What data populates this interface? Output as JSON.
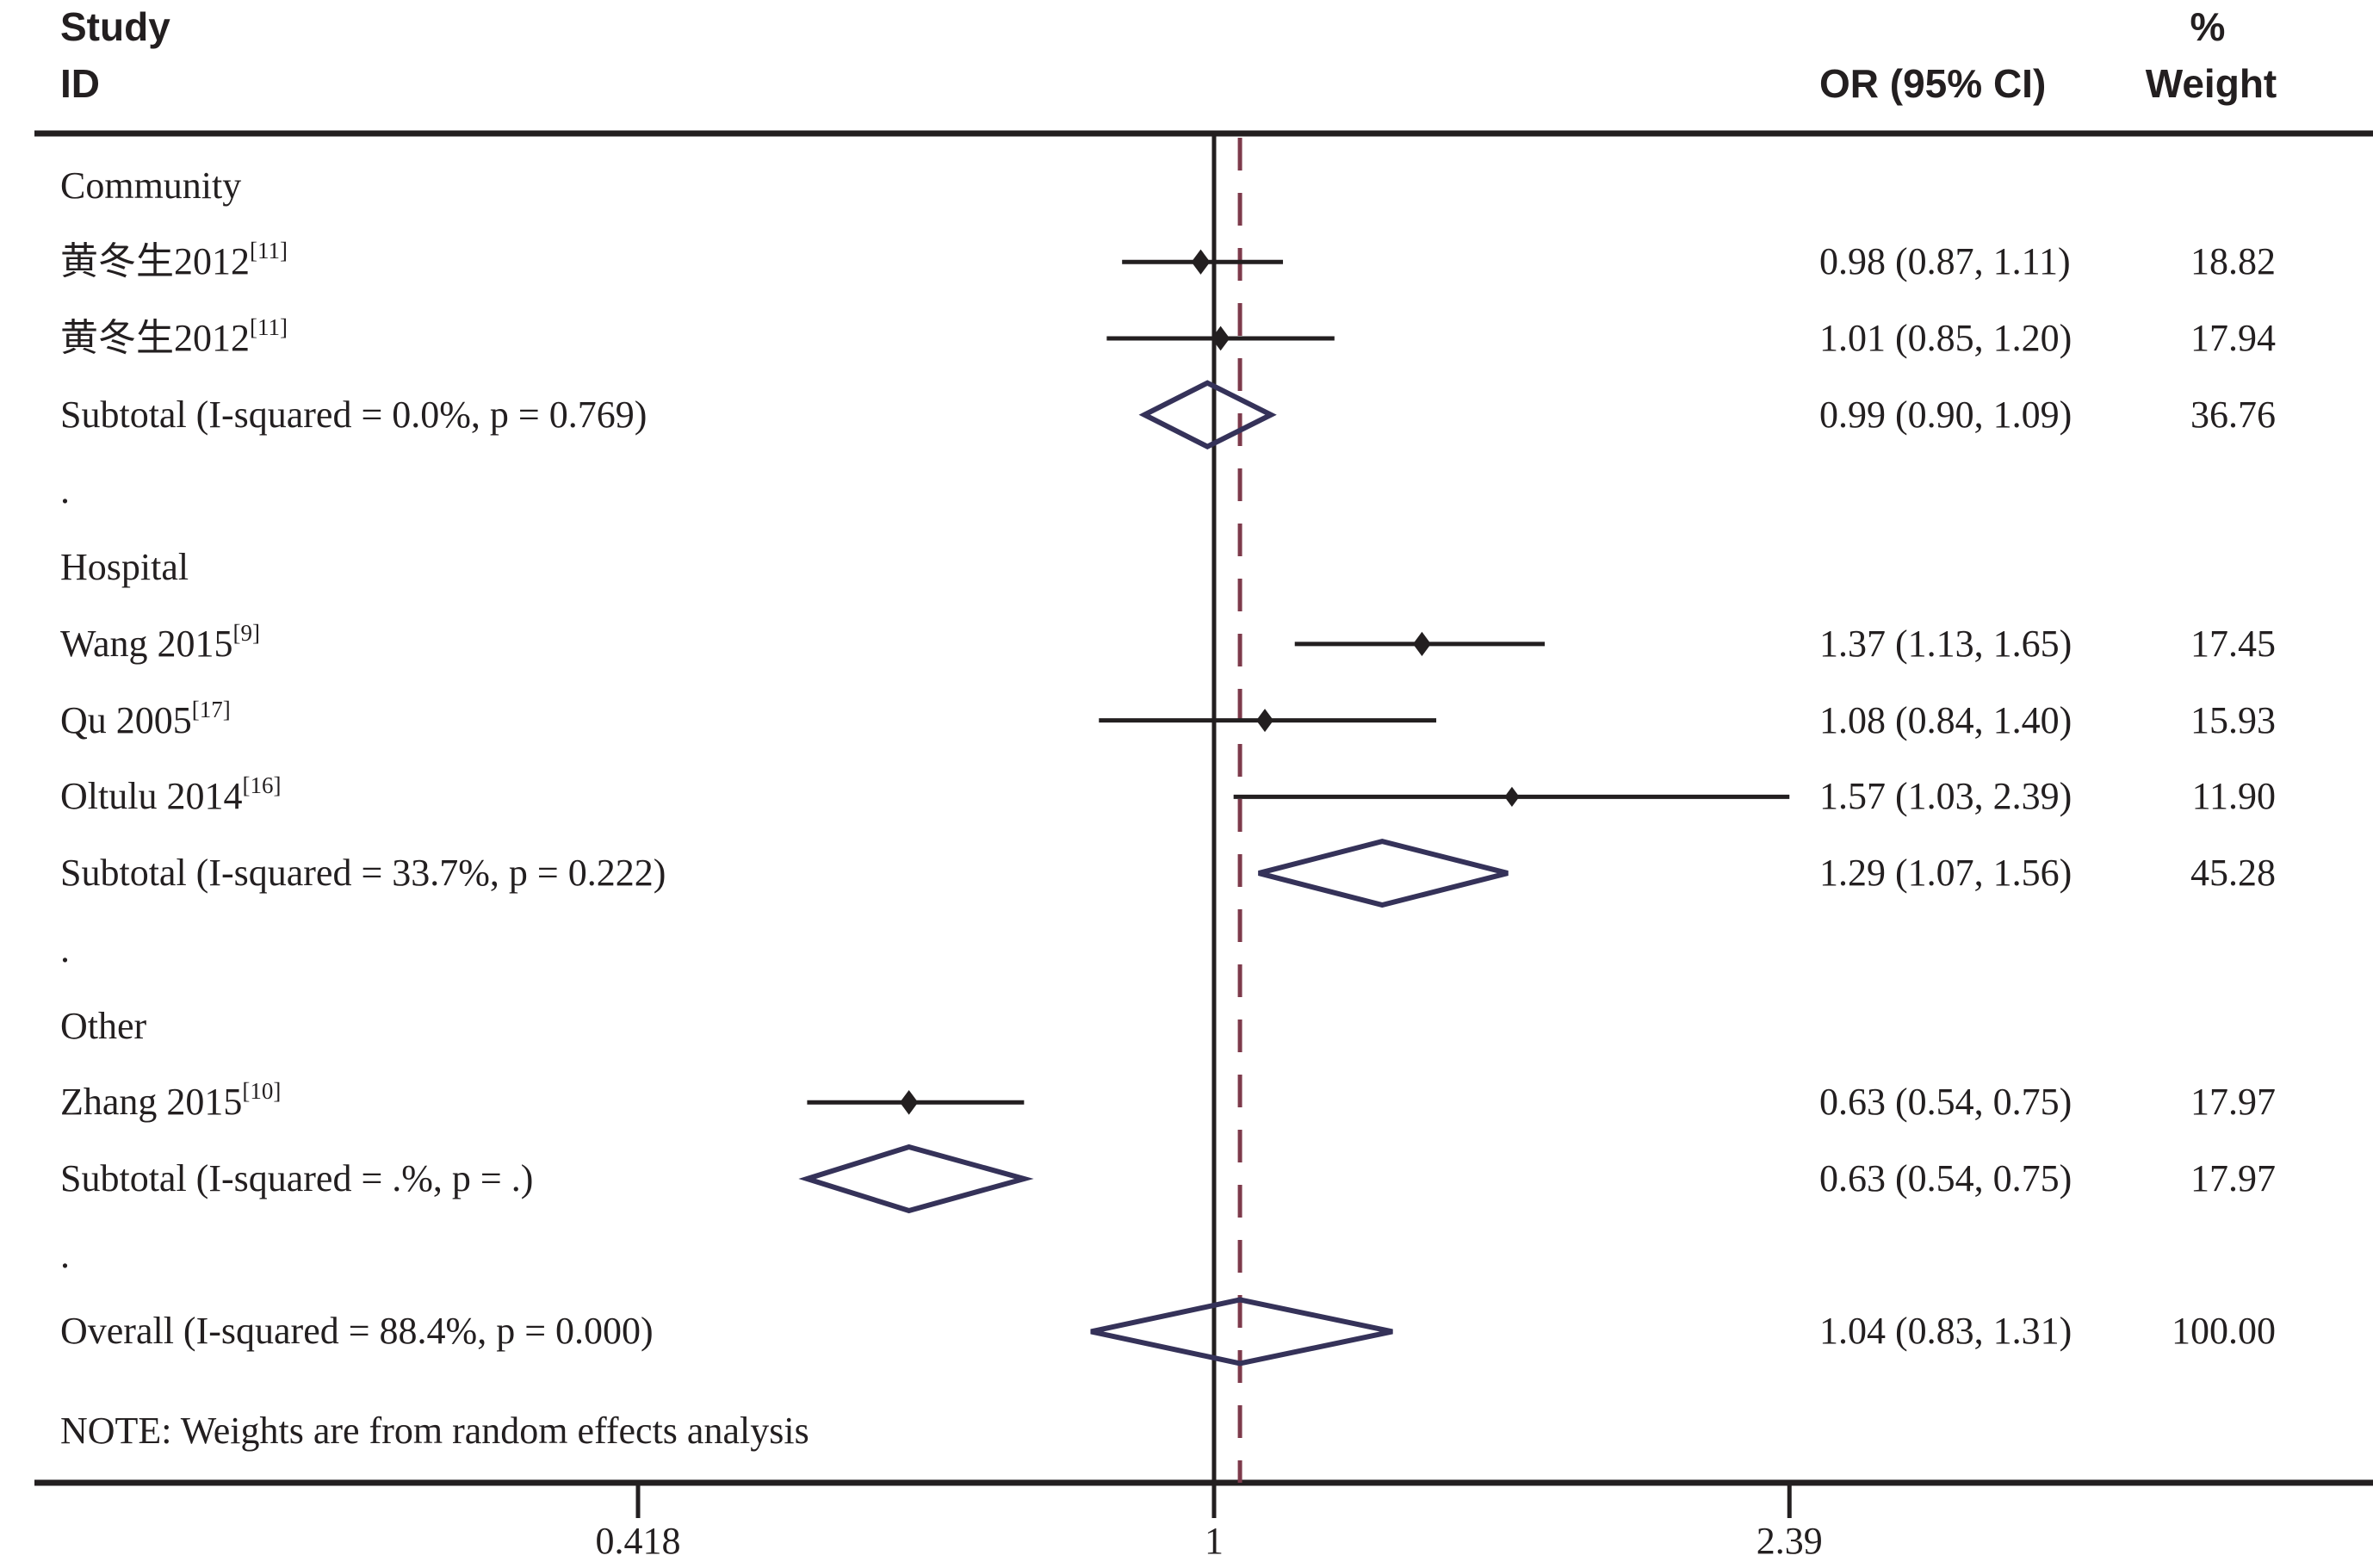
{
  "header": {
    "study_line1": "Study",
    "study_line2": "ID",
    "percent_sign": "%",
    "or_col": "OR (95% CI)",
    "weight_col": "Weight"
  },
  "note": "NOTE: Weights are from random effects analysis",
  "colors": {
    "ink": "#231f20",
    "pooled_diamond": "#353259",
    "overall_dashed_line": "#7d3a4b"
  },
  "chart_data": {
    "type": "forest",
    "effect_measure": "OR",
    "x_scale": "log",
    "x_ticks": [
      0.418,
      1,
      2.39
    ],
    "x_tick_labels": [
      "0.418",
      "1",
      "2.39"
    ],
    "null_line_value": 1,
    "overall_dashed_value": 1.04,
    "legend_position": "none",
    "rows": [
      {
        "kind": "group",
        "label": "Community"
      },
      {
        "kind": "study",
        "label": "黄冬生2012",
        "sup": "[11]",
        "or": 0.98,
        "lo": 0.87,
        "hi": 1.11,
        "or_text": "0.98 (0.87, 1.11)",
        "weight": 18.82,
        "weight_text": "18.82"
      },
      {
        "kind": "study",
        "label": "黄冬生2012",
        "sup": "[11]",
        "or": 1.01,
        "lo": 0.85,
        "hi": 1.2,
        "or_text": "1.01 (0.85, 1.20)",
        "weight": 17.94,
        "weight_text": "17.94"
      },
      {
        "kind": "subtotal",
        "label": "Subtotal  (I-squared = 0.0%, p = 0.769)",
        "or": 0.99,
        "lo": 0.9,
        "hi": 1.09,
        "or_text": "0.99 (0.90, 1.09)",
        "weight": 36.76,
        "weight_text": "36.76"
      },
      {
        "kind": "dot",
        "label": "."
      },
      {
        "kind": "group",
        "label": "Hospital"
      },
      {
        "kind": "study",
        "label": "Wang 2015",
        "sup": "[9]",
        "or": 1.37,
        "lo": 1.13,
        "hi": 1.65,
        "or_text": "1.37 (1.13, 1.65)",
        "weight": 17.45,
        "weight_text": "17.45"
      },
      {
        "kind": "study",
        "label": "Qu 2005",
        "sup": "[17]",
        "or": 1.08,
        "lo": 0.84,
        "hi": 1.4,
        "or_text": "1.08 (0.84, 1.40)",
        "weight": 15.93,
        "weight_text": "15.93"
      },
      {
        "kind": "study",
        "label": "Oltulu 2014",
        "sup": "[16]",
        "or": 1.57,
        "lo": 1.03,
        "hi": 2.39,
        "or_text": "1.57 (1.03, 2.39)",
        "weight": 11.9,
        "weight_text": "11.90"
      },
      {
        "kind": "subtotal",
        "label": "Subtotal  (I-squared = 33.7%, p = 0.222)",
        "or": 1.29,
        "lo": 1.07,
        "hi": 1.56,
        "or_text": "1.29 (1.07, 1.56)",
        "weight": 45.28,
        "weight_text": "45.28"
      },
      {
        "kind": "dot",
        "label": "."
      },
      {
        "kind": "group",
        "label": "Other"
      },
      {
        "kind": "study",
        "label": "Zhang 2015",
        "sup": "[10]",
        "or": 0.63,
        "lo": 0.54,
        "hi": 0.75,
        "or_text": "0.63 (0.54, 0.75)",
        "weight": 17.97,
        "weight_text": "17.97"
      },
      {
        "kind": "subtotal",
        "label": "Subtotal  (I-squared = .%, p = .)",
        "or": 0.63,
        "lo": 0.54,
        "hi": 0.75,
        "or_text": "0.63 (0.54, 0.75)",
        "weight": 17.97,
        "weight_text": "17.97"
      },
      {
        "kind": "dot",
        "label": "."
      },
      {
        "kind": "overall",
        "label": "Overall  (I-squared = 88.4%, p = 0.000)",
        "or": 1.04,
        "lo": 0.83,
        "hi": 1.31,
        "or_text": "1.04 (0.83, 1.31)",
        "weight": 100.0,
        "weight_text": "100.00"
      }
    ]
  }
}
